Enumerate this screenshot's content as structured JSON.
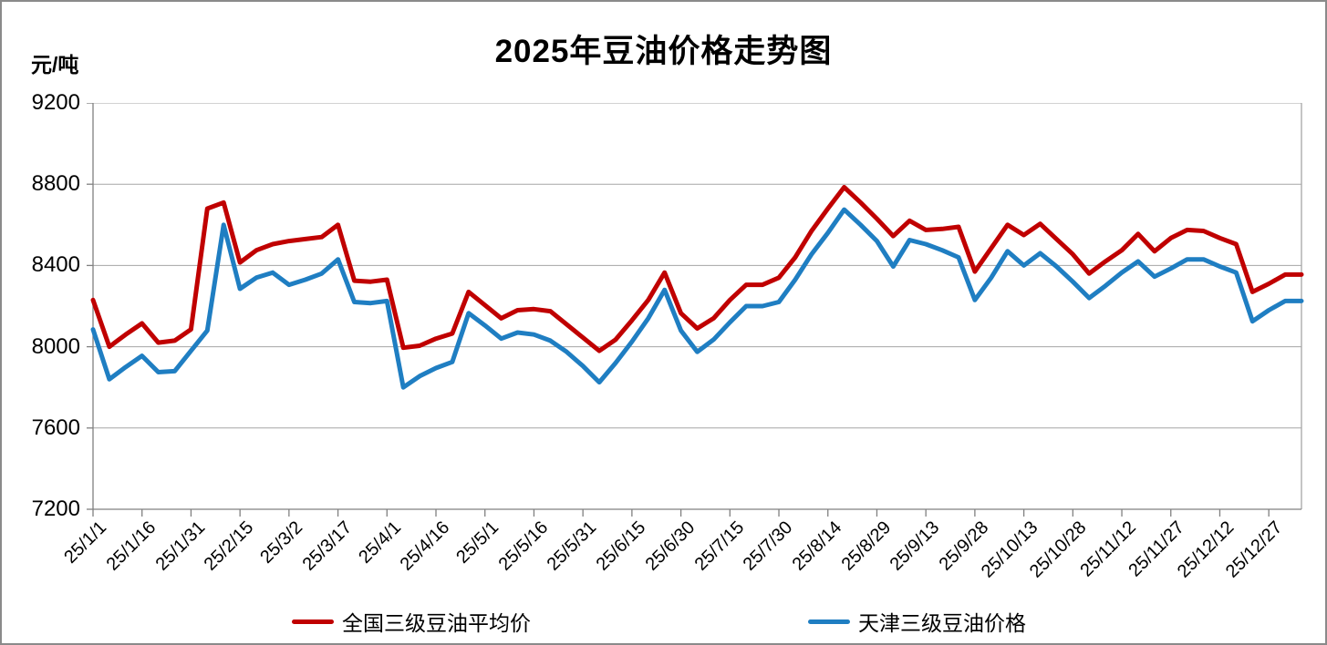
{
  "chart_data": {
    "type": "line",
    "title": "2025年豆油价格走势图",
    "y_unit": "元/吨",
    "ylim": [
      7200,
      9200
    ],
    "y_ticks": [
      9200,
      8800,
      8400,
      8000,
      7600,
      7200
    ],
    "grid": "horizontal-major",
    "legend_position": "bottom",
    "x_label_every": 3,
    "points_count": 75,
    "x_labels": [
      "25/1/1",
      "25/1/16",
      "25/1/31",
      "25/2/15",
      "25/3/2",
      "25/3/17",
      "25/4/1",
      "25/4/16",
      "25/5/1",
      "25/5/16",
      "25/5/31",
      "25/6/15",
      "25/6/30",
      "25/7/15",
      "25/7/30",
      "25/8/14",
      "25/8/29",
      "25/9/13",
      "25/9/28",
      "25/10/13",
      "25/10/28",
      "25/11/12",
      "25/11/27",
      "25/12/12",
      "25/12/27"
    ],
    "series": [
      {
        "name": "全国三级豆油平均价",
        "color": "#C00000",
        "values": [
          8230,
          8000,
          8060,
          8115,
          8020,
          8030,
          8085,
          8680,
          8710,
          8415,
          8475,
          8505,
          8520,
          8530,
          8540,
          8600,
          8325,
          8320,
          8330,
          7995,
          8005,
          8040,
          8065,
          8270,
          8205,
          8140,
          8180,
          8185,
          8175,
          8110,
          8045,
          7980,
          8035,
          8130,
          8230,
          8365,
          8165,
          8090,
          8140,
          8230,
          8305,
          8305,
          8340,
          8440,
          8570,
          8680,
          8785,
          8710,
          8630,
          8545,
          8620,
          8575,
          8580,
          8590,
          8370,
          8485,
          8600,
          8550,
          8605,
          8530,
          8455,
          8360,
          8420,
          8475,
          8555,
          8470,
          8535,
          8575,
          8570,
          8535,
          8505,
          8270,
          8310,
          8355,
          8355
        ]
      },
      {
        "name": "天津三级豆油价格",
        "color": "#1F7EC2",
        "values": [
          8085,
          7840,
          7900,
          7955,
          7875,
          7880,
          7980,
          8080,
          8600,
          8285,
          8340,
          8365,
          8305,
          8330,
          8360,
          8430,
          8220,
          8215,
          8225,
          7800,
          7855,
          7895,
          7925,
          8165,
          8105,
          8040,
          8070,
          8060,
          8030,
          7975,
          7905,
          7825,
          7920,
          8025,
          8140,
          8280,
          8080,
          7975,
          8035,
          8120,
          8200,
          8200,
          8220,
          8330,
          8455,
          8560,
          8675,
          8600,
          8520,
          8395,
          8525,
          8505,
          8475,
          8440,
          8230,
          8340,
          8470,
          8400,
          8460,
          8395,
          8320,
          8240,
          8300,
          8365,
          8420,
          8345,
          8385,
          8430,
          8430,
          8395,
          8365,
          8125,
          8180,
          8225,
          8225
        ]
      }
    ],
    "axis_color": "#808080",
    "gridline_color": "#a6a6a6"
  }
}
